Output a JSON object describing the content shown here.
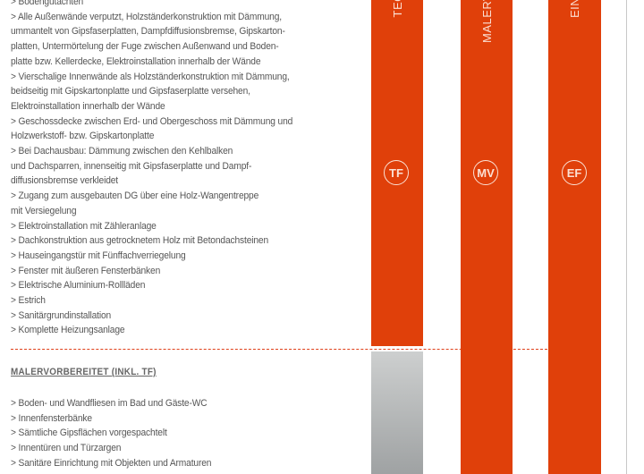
{
  "colors": {
    "accent": "#e0400a",
    "text": "#555555",
    "gray_bar": "#b0b2b3"
  },
  "section1": {
    "items": [
      {
        "lines": [
          "> Bodengutachten"
        ]
      },
      {
        "lines": [
          "> Alle Außenwände verputzt, Holzständerkonstruktion mit Dämmung,",
          "ummantelt von Gipsfaserplatten, Dampfdiffusionsbremse, Gipskarton-",
          "platten, Untermörtelung der Fuge zwischen Außenwand und Boden-",
          "platte bzw. Kellerdecke, Elektroinstallation innerhalb der Wände"
        ]
      },
      {
        "lines": [
          "> Vierschalige Innenwände als Holzständerkonstruktion mit Dämmung,",
          "beidseitig mit Gipskartonplatte und Gipsfaserplatte versehen,",
          "Elektroinstallation innerhalb der Wände"
        ]
      },
      {
        "lines": [
          "> Geschossdecke zwischen Erd- und Obergeschoss mit Dämmung und",
          "Holzwerkstoff- bzw. Gipskartonplatte"
        ]
      },
      {
        "lines": [
          "> Bei Dachausbau: Dämmung zwischen den Kehlbalken",
          "und Dachsparren, innenseitig mit Gipsfaserplatte und Dampf-",
          "diffusionsbremse verkleidet"
        ]
      },
      {
        "lines": [
          "> Zugang zum ausgebauten DG über eine Holz-Wangentreppe",
          "mit Versiegelung"
        ]
      },
      {
        "lines": [
          "> Elektroinstallation mit Zähleranlage"
        ]
      },
      {
        "lines": [
          "> Dachkonstruktion aus getrocknetem Holz mit Betondachsteinen"
        ]
      },
      {
        "lines": [
          "> Hauseingangstür mit Fünffachverriegelung"
        ]
      },
      {
        "lines": [
          "> Fenster mit äußeren Fensterbänken"
        ]
      },
      {
        "lines": [
          "> Elektrische Aluminium-Rollläden"
        ]
      },
      {
        "lines": [
          "> Estrich"
        ]
      },
      {
        "lines": [
          "> Sanitärgrundinstallation"
        ]
      },
      {
        "lines": [
          "> Komplette Heizungsanlage"
        ]
      }
    ]
  },
  "section2": {
    "heading": "MALERVORBEREITET (INKL. TF)",
    "items": [
      {
        "lines": [
          "> Boden- und Wandfliesen im Bad und Gäste-WC"
        ]
      },
      {
        "lines": [
          "> Innenfensterbänke"
        ]
      },
      {
        "lines": [
          "> Sämtliche Gipsflächen vorgespachtelt"
        ]
      },
      {
        "lines": [
          "> Innentüren und Türzargen"
        ]
      },
      {
        "lines": [
          "> Sanitäre Einrichtung mit Objekten und Armaturen"
        ]
      }
    ]
  },
  "bars": [
    {
      "label": "TEC",
      "badge": "TF"
    },
    {
      "label": "MALERV",
      "badge": "MV"
    },
    {
      "label": "EIN",
      "badge": "EF"
    }
  ]
}
